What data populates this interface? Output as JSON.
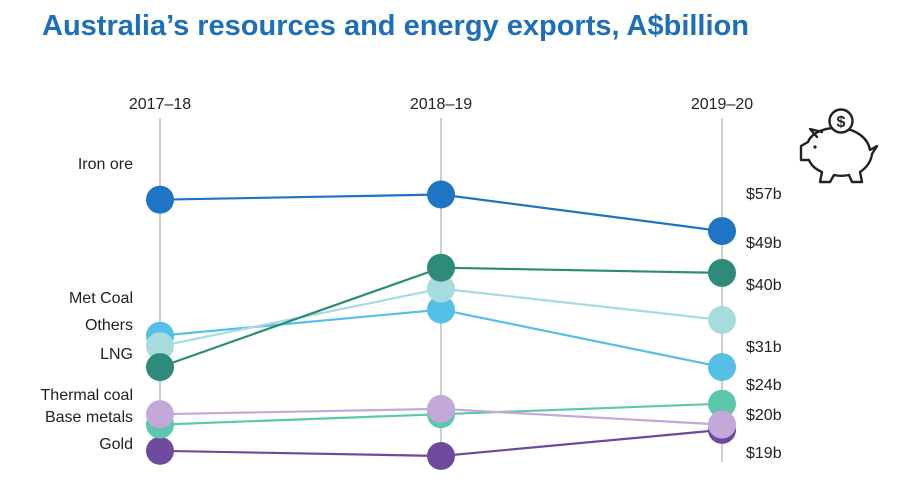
{
  "chart_data": {
    "type": "line",
    "title": "Australia’s resources and energy exports, A$billion",
    "categories": [
      "2017–18",
      "2018–19",
      "2019–20"
    ],
    "series": [
      {
        "name": "Iron ore",
        "values": [
          63,
          64,
          57
        ],
        "color": "#1f74c4",
        "end_label": "$57b"
      },
      {
        "name": "LNG",
        "values": [
          31,
          50,
          49
        ],
        "color": "#2e8b7a",
        "end_label": "$49b"
      },
      {
        "name": "Others",
        "values": [
          35,
          46,
          40
        ],
        "color": "#a8dbe0",
        "end_label": "$40b"
      },
      {
        "name": "Met Coal",
        "values": [
          37,
          42,
          31
        ],
        "color": "#55bfe6",
        "end_label": "$31b"
      },
      {
        "name": "Thermal coal",
        "values": [
          22,
          23,
          20
        ],
        "color": "#c4a8d9",
        "end_label": "$20b"
      },
      {
        "name": "Base metals",
        "values": [
          20,
          22,
          24
        ],
        "color": "#5cc7ad",
        "end_label": "$24b"
      },
      {
        "name": "Gold",
        "values": [
          15,
          14,
          19
        ],
        "color": "#6e4a9e",
        "end_label": "$19b"
      }
    ],
    "grid": false,
    "legend": "left labels",
    "icon": "piggy-bank-dollar-icon"
  }
}
